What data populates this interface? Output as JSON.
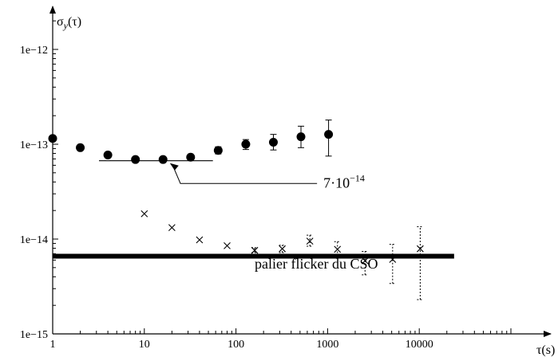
{
  "chart_data": {
    "type": "scatter",
    "title": "",
    "xlabel": "τ(s)",
    "ylabel": "σ_y(τ)",
    "xscale": "log",
    "yscale": "log",
    "xlim": [
      1,
      100000
    ],
    "ylim": [
      1e-15,
      3e-12
    ],
    "grid": false,
    "x_ticks": [
      {
        "value": 1,
        "label": "1"
      },
      {
        "value": 10,
        "label": "10"
      },
      {
        "value": 100,
        "label": "100"
      },
      {
        "value": 1000,
        "label": "1000"
      },
      {
        "value": 10000,
        "label": "10000"
      }
    ],
    "y_ticks": [
      {
        "value": 1e-15,
        "label": "1e−15"
      },
      {
        "value": 1e-14,
        "label": "1e−14"
      },
      {
        "value": 1e-13,
        "label": "1e−13"
      },
      {
        "value": 1e-12,
        "label": "1e−12"
      }
    ],
    "series": [
      {
        "marker": "filled-circle",
        "points": [
          {
            "x": 1,
            "y": 1.15e-13
          },
          {
            "x": 2,
            "y": 9.2e-14
          },
          {
            "x": 4,
            "y": 7.7e-14
          },
          {
            "x": 8,
            "y": 6.9e-14
          },
          {
            "x": 16,
            "y": 6.9e-14
          },
          {
            "x": 32,
            "y": 7.3e-14
          },
          {
            "x": 64,
            "y": 8.6e-14,
            "err": [
              7.9e-14,
              9.4e-14
            ]
          },
          {
            "x": 128,
            "y": 1e-13,
            "err": [
              8.8e-14,
              1.12e-13
            ]
          },
          {
            "x": 256,
            "y": 1.05e-13,
            "err": [
              8.7e-14,
              1.27e-13
            ]
          },
          {
            "x": 512,
            "y": 1.2e-13,
            "err": [
              9.2e-14,
              1.55e-13
            ]
          },
          {
            "x": 1024,
            "y": 1.27e-13,
            "err": [
              7.5e-14,
              1.8e-13
            ]
          }
        ]
      },
      {
        "marker": "cross",
        "points": [
          {
            "x": 10,
            "y": 1.85e-14
          },
          {
            "x": 20,
            "y": 1.32e-14
          },
          {
            "x": 40,
            "y": 9.8e-15
          },
          {
            "x": 80,
            "y": 8.5e-15
          },
          {
            "x": 160,
            "y": 7.6e-15,
            "err": [
              7.2e-15,
              8.1e-15
            ]
          },
          {
            "x": 320,
            "y": 7.9e-15,
            "err": [
              7.2e-15,
              8.6e-15
            ]
          },
          {
            "x": 640,
            "y": 9.5e-15,
            "err": [
              8.4e-15,
              1.1e-14
            ]
          },
          {
            "x": 1280,
            "y": 7.8e-15,
            "err": [
              6.6e-15,
              9.4e-15
            ]
          },
          {
            "x": 2560,
            "y": 5.9e-15,
            "err": [
              4.2e-15,
              7.4e-15
            ]
          },
          {
            "x": 5120,
            "y": 6.1e-15,
            "err": [
              3.4e-15,
              8.8e-15
            ]
          },
          {
            "x": 10240,
            "y": 7.9e-15,
            "err": [
              2.3e-15,
              1.35e-14
            ]
          }
        ]
      }
    ],
    "reference_lines": [
      {
        "y": 6.7e-14,
        "x_from": 3.2,
        "x_to": 56,
        "thickness": "thin"
      },
      {
        "y": 6.6e-15,
        "x_from": 1,
        "x_to": 24000,
        "thickness": "thick"
      }
    ],
    "annotations": [
      {
        "text": "7·10",
        "exponent": "−14",
        "anchor_x": 900,
        "anchor_y": 3.5e-14,
        "arrow_to_x": 19,
        "arrow_to_y": 6.7e-14
      },
      {
        "text": "palier flicker du CSO",
        "anchor_x": 160,
        "anchor_y": 4.9e-15
      }
    ]
  }
}
